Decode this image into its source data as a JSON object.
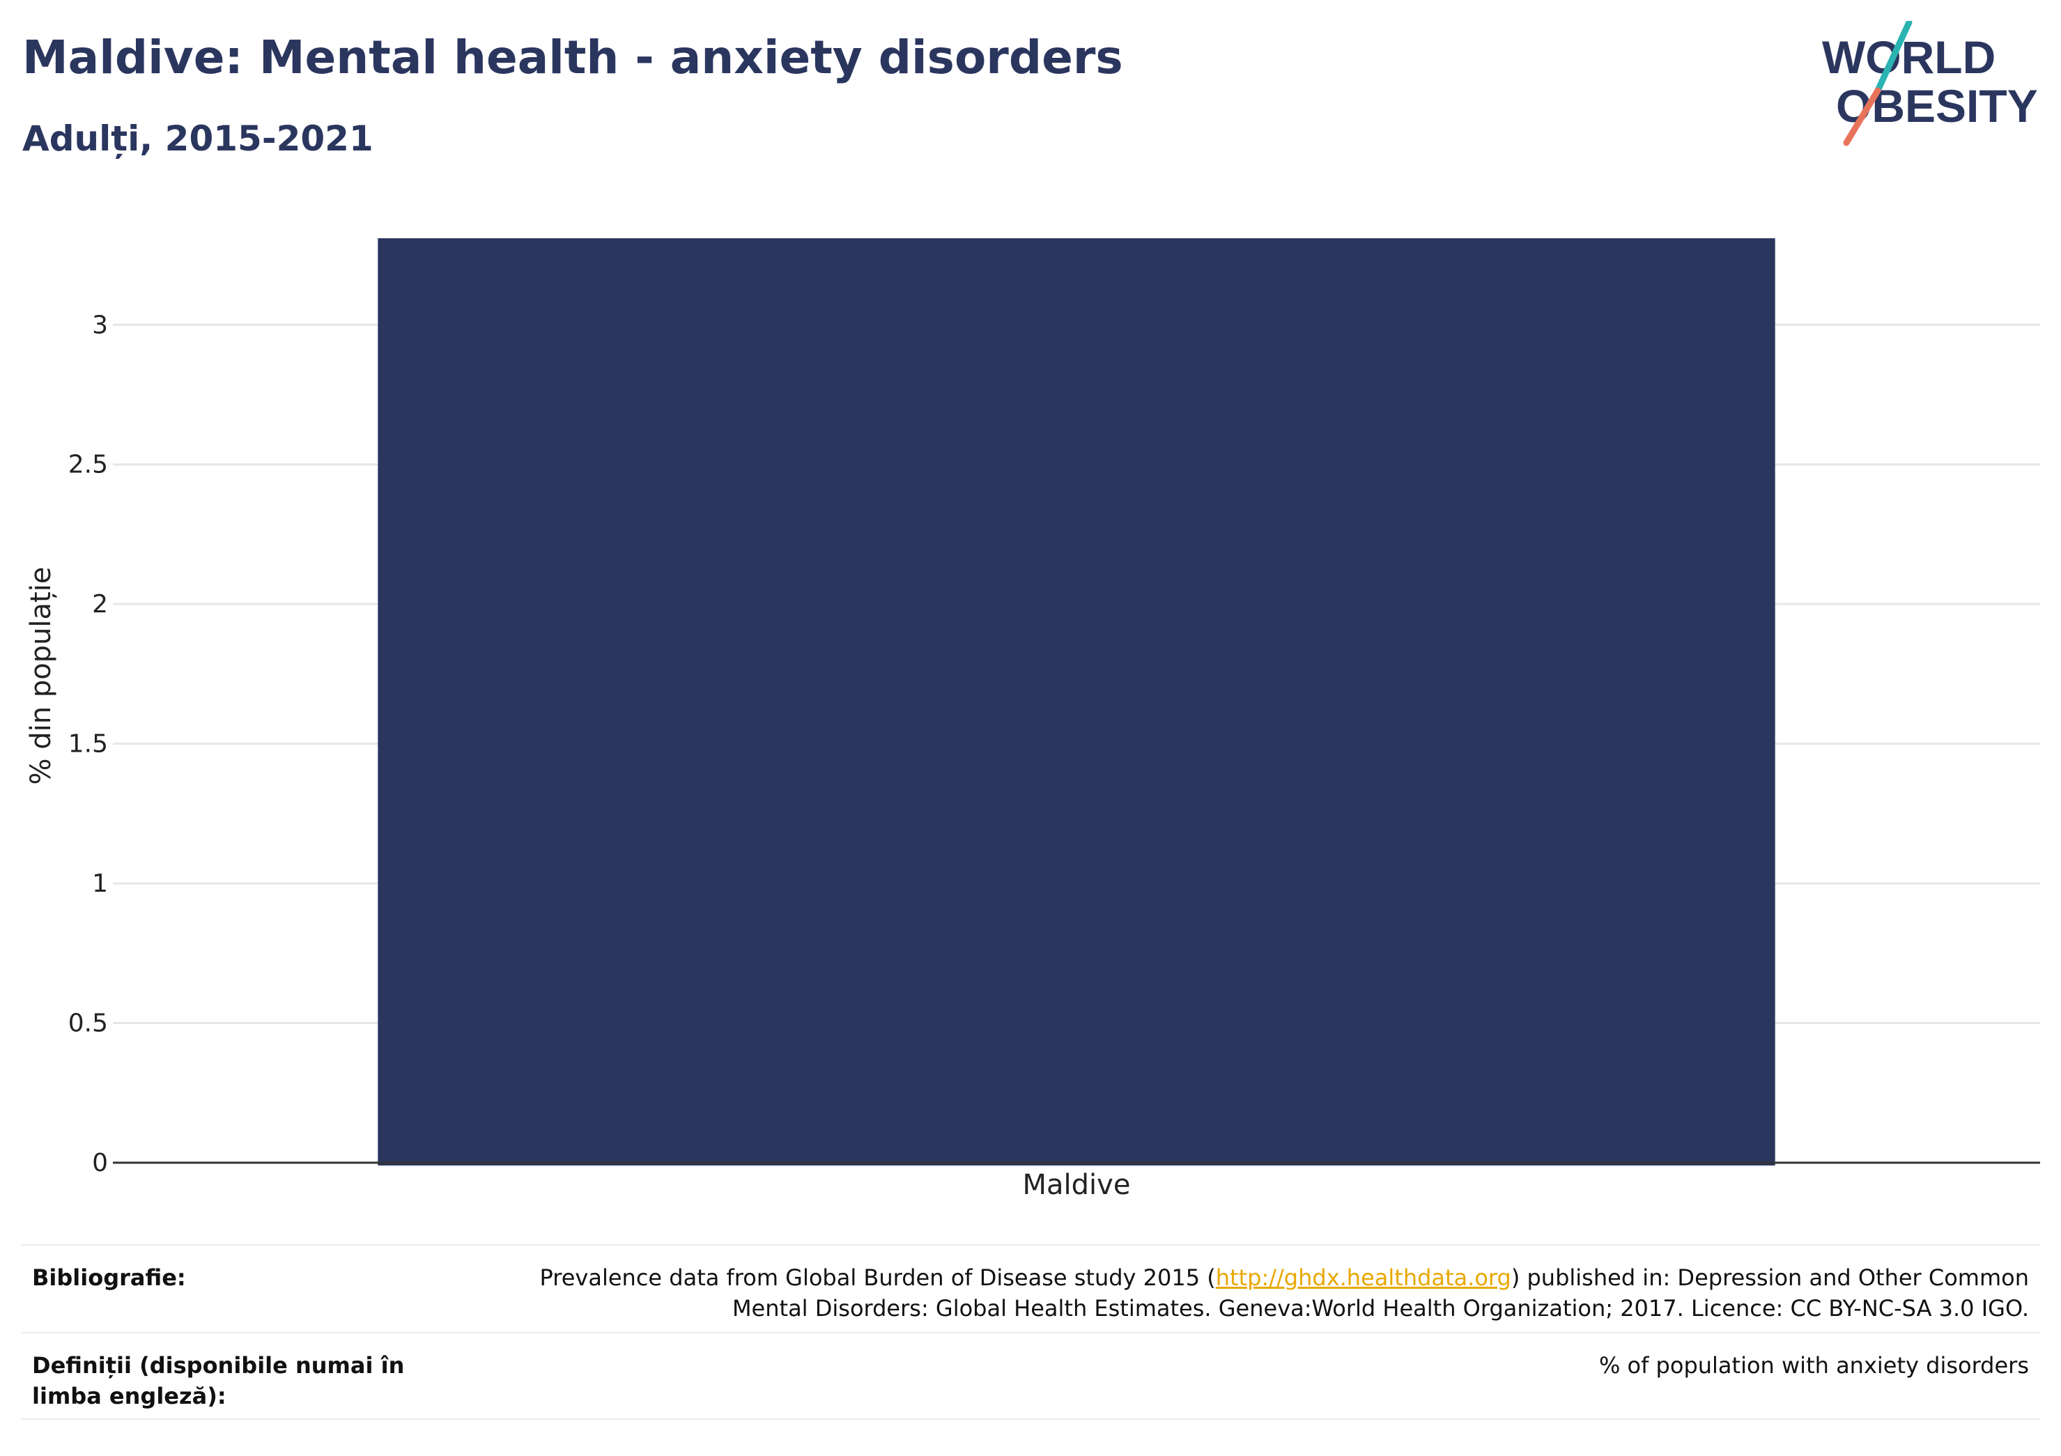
{
  "header": {
    "title": "Maldive: Mental health - anxiety disorders",
    "subtitle": "Adulți, 2015-2021"
  },
  "logo": {
    "line1": "WORLD",
    "line2": "OBESITY",
    "colors": {
      "text": "#2b365f",
      "slash_top": "#2ab3b1",
      "slash_bottom": "#e8735b"
    }
  },
  "chart_data": {
    "type": "bar",
    "categories": [
      "Maldive"
    ],
    "values": [
      3.31
    ],
    "ylabel": "% din populație",
    "xlabel": "",
    "ylim": [
      0,
      3.31
    ],
    "yticks": [
      0,
      0.5,
      1,
      1.5,
      2,
      2.5,
      3
    ],
    "ytick_labels": [
      "0",
      "0.5",
      "1",
      "1.5",
      "2",
      "2.5",
      "3"
    ],
    "grid": true,
    "bar_color": "#2b365f"
  },
  "footer": {
    "bibliography_label": "Bibliografie:",
    "bibliography_pre": "Prevalence data from Global Burden of Disease study 2015 (",
    "bibliography_link": "http://ghdx.healthdata.org",
    "bibliography_post": ") published in: Depression and Other Common",
    "bibliography_line2": "Mental Disorders: Global Health Estimates. Geneva:World Health Organization; 2017. Licence: CC BY-NC-SA 3.0 IGO.",
    "definitions_label": "Definiții (disponibile numai în limba engleză):",
    "definitions_text": "% of population with anxiety disorders"
  }
}
